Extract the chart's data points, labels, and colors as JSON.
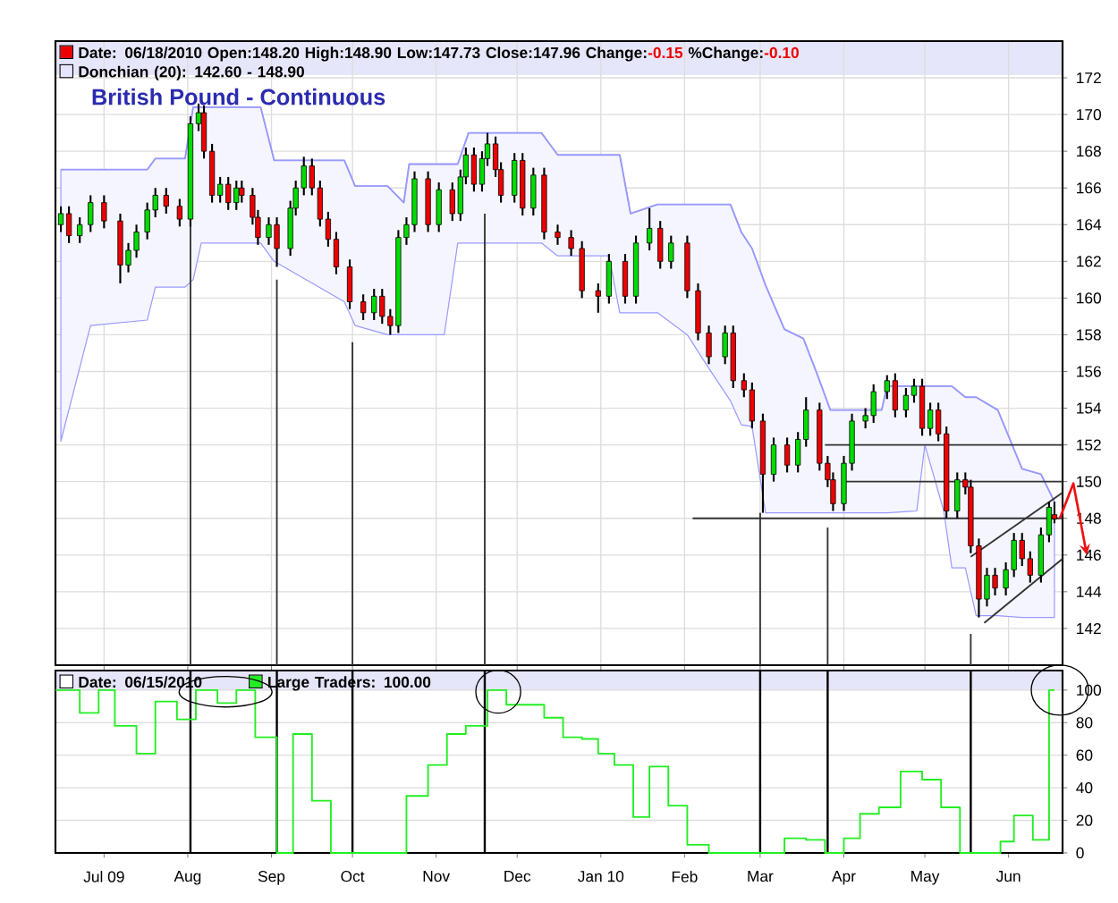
{
  "chart_data": [
    {
      "type": "candlestick",
      "title": "British Pound - Continuous",
      "annotations": [
        "Date: 06/18/2010  Open:148.20  High:148.90  Low:147.73  Close:147.96  Change:",
        "-0.15",
        "  %Change:",
        "-0.10"
      ],
      "x": [
        "2009-06-15",
        "2009-06-18",
        "2009-06-22",
        "2009-06-26",
        "2009-07-01",
        "2009-07-07",
        "2009-07-10",
        "2009-07-13",
        "2009-07-17",
        "2009-07-20",
        "2009-07-24",
        "2009-07-29",
        "2009-08-02",
        "2009-08-05",
        "2009-08-07",
        "2009-08-10",
        "2009-08-13",
        "2009-08-16",
        "2009-08-19",
        "2009-08-21",
        "2009-08-25",
        "2009-08-27",
        "2009-08-31",
        "2009-09-03",
        "2009-09-08",
        "2009-09-10",
        "2009-09-13",
        "2009-09-16",
        "2009-09-19",
        "2009-09-22",
        "2009-09-25",
        "2009-09-30",
        "2009-10-05",
        "2009-10-09",
        "2009-10-12",
        "2009-10-15",
        "2009-10-18",
        "2009-10-21",
        "2009-10-24",
        "2009-10-29",
        "2009-11-02",
        "2009-11-07",
        "2009-11-10",
        "2009-11-12",
        "2009-11-15",
        "2009-11-18",
        "2009-11-20",
        "2009-11-23",
        "2009-11-25",
        "2009-11-30",
        "2009-12-03",
        "2009-12-07",
        "2009-12-11",
        "2009-12-16",
        "2009-12-21",
        "2009-12-25",
        "2009-12-31",
        "2010-01-04",
        "2010-01-10",
        "2010-01-14",
        "2010-01-19",
        "2010-01-23",
        "2010-01-27",
        "2010-02-02",
        "2010-02-06",
        "2010-02-10",
        "2010-02-16",
        "2010-02-19",
        "2010-02-23",
        "2010-02-26",
        "2010-03-02",
        "2010-03-06",
        "2010-03-11",
        "2010-03-15",
        "2010-03-18",
        "2010-03-23",
        "2010-03-26",
        "2010-03-28",
        "2010-04-01",
        "2010-04-04",
        "2010-04-09",
        "2010-04-12",
        "2010-04-17",
        "2010-04-20",
        "2010-04-24",
        "2010-04-27",
        "2010-04-30",
        "2010-05-03",
        "2010-05-06",
        "2010-05-09",
        "2010-05-13",
        "2010-05-16",
        "2010-05-18",
        "2010-05-21",
        "2010-05-24",
        "2010-05-27",
        "2010-05-31",
        "2010-06-03",
        "2010-06-06",
        "2010-06-09",
        "2010-06-13",
        "2010-06-16",
        "2010-06-18"
      ],
      "ohlc": [
        [
          164.0,
          165.0,
          163.6,
          164.6
        ],
        [
          164.6,
          165.0,
          163.0,
          163.4
        ],
        [
          163.4,
          164.4,
          163.0,
          164.0
        ],
        [
          164.0,
          165.6,
          163.6,
          165.2
        ],
        [
          165.2,
          165.6,
          163.8,
          164.2
        ],
        [
          164.2,
          164.6,
          160.8,
          161.8
        ],
        [
          161.8,
          163.0,
          161.4,
          162.6
        ],
        [
          162.6,
          164.0,
          162.2,
          163.6
        ],
        [
          163.6,
          165.2,
          163.2,
          164.8
        ],
        [
          164.8,
          166.0,
          164.4,
          165.6
        ],
        [
          165.6,
          166.0,
          164.6,
          165.0
        ],
        [
          165.0,
          165.4,
          163.9,
          164.3
        ],
        [
          164.3,
          169.9,
          163.9,
          169.5
        ],
        [
          169.5,
          170.6,
          169.1,
          170.1
        ],
        [
          170.1,
          170.5,
          167.6,
          168.0
        ],
        [
          168.0,
          168.4,
          165.2,
          165.6
        ],
        [
          165.6,
          166.6,
          165.2,
          166.2
        ],
        [
          166.2,
          166.6,
          164.8,
          165.2
        ],
        [
          165.2,
          166.4,
          164.8,
          166.0
        ],
        [
          166.0,
          166.4,
          165.2,
          165.6
        ],
        [
          165.6,
          166.0,
          164.0,
          164.4
        ],
        [
          164.4,
          164.8,
          162.9,
          163.3
        ],
        [
          163.3,
          164.4,
          162.9,
          164.0
        ],
        [
          164.0,
          164.4,
          161.7,
          162.7
        ],
        [
          162.7,
          165.3,
          162.3,
          164.9
        ],
        [
          164.9,
          166.4,
          164.5,
          166.0
        ],
        [
          166.0,
          167.7,
          165.6,
          167.2
        ],
        [
          167.2,
          167.6,
          165.6,
          166.0
        ],
        [
          166.0,
          166.4,
          163.9,
          164.3
        ],
        [
          164.3,
          164.7,
          162.8,
          163.2
        ],
        [
          163.2,
          163.6,
          161.3,
          161.7
        ],
        [
          161.7,
          162.1,
          159.4,
          159.8
        ],
        [
          159.8,
          160.2,
          158.8,
          159.2
        ],
        [
          159.2,
          160.5,
          158.8,
          160.1
        ],
        [
          160.1,
          160.5,
          158.6,
          159.0
        ],
        [
          159.0,
          159.4,
          158.0,
          158.5
        ],
        [
          158.5,
          163.7,
          158.1,
          163.3
        ],
        [
          163.3,
          164.4,
          162.9,
          164.0
        ],
        [
          164.0,
          166.9,
          163.6,
          166.5
        ],
        [
          166.5,
          166.9,
          163.6,
          164.0
        ],
        [
          164.0,
          166.3,
          163.6,
          165.9
        ],
        [
          165.9,
          166.3,
          164.2,
          164.6
        ],
        [
          164.6,
          167.0,
          164.2,
          166.6
        ],
        [
          166.6,
          168.2,
          166.2,
          167.8
        ],
        [
          167.8,
          168.2,
          165.8,
          166.2
        ],
        [
          166.2,
          168.0,
          165.8,
          167.6
        ],
        [
          167.6,
          169.0,
          167.2,
          168.4
        ],
        [
          168.4,
          168.8,
          166.6,
          167.0
        ],
        [
          167.0,
          167.4,
          165.2,
          165.6
        ],
        [
          165.6,
          167.9,
          165.2,
          167.5
        ],
        [
          167.5,
          167.9,
          164.5,
          164.9
        ],
        [
          164.9,
          167.1,
          164.5,
          166.7
        ],
        [
          166.7,
          167.1,
          163.2,
          163.6
        ],
        [
          163.6,
          164.0,
          162.9,
          163.3
        ],
        [
          163.3,
          163.7,
          162.3,
          162.7
        ],
        [
          162.7,
          163.1,
          160.0,
          160.4
        ],
        [
          160.4,
          160.8,
          159.2,
          160.1
        ],
        [
          160.1,
          162.4,
          159.7,
          162.0
        ],
        [
          162.0,
          162.4,
          159.7,
          160.1
        ],
        [
          160.1,
          163.4,
          159.7,
          163.0
        ],
        [
          163.0,
          164.9,
          162.6,
          163.8
        ],
        [
          163.8,
          164.2,
          161.6,
          162.0
        ],
        [
          162.0,
          163.4,
          161.6,
          163.0
        ],
        [
          163.0,
          163.4,
          160.0,
          160.4
        ],
        [
          160.4,
          160.8,
          157.7,
          158.1
        ],
        [
          158.1,
          158.5,
          156.4,
          156.8
        ],
        [
          156.8,
          158.5,
          156.4,
          158.1
        ],
        [
          158.1,
          158.5,
          155.1,
          155.5
        ],
        [
          155.5,
          155.9,
          154.6,
          155.0
        ],
        [
          155.0,
          155.4,
          152.9,
          153.3
        ],
        [
          153.3,
          153.7,
          148.3,
          150.4
        ],
        [
          150.4,
          152.4,
          150.0,
          152.0
        ],
        [
          152.0,
          152.4,
          150.5,
          150.9
        ],
        [
          150.9,
          152.7,
          150.5,
          152.3
        ],
        [
          152.3,
          154.6,
          151.9,
          153.9
        ],
        [
          153.9,
          154.3,
          150.6,
          151.0
        ],
        [
          151.0,
          151.4,
          149.7,
          150.1
        ],
        [
          150.1,
          150.5,
          148.4,
          148.8
        ],
        [
          148.8,
          151.4,
          148.4,
          151.0
        ],
        [
          151.0,
          153.7,
          150.6,
          153.3
        ],
        [
          153.3,
          154.0,
          152.9,
          153.6
        ],
        [
          153.6,
          155.3,
          153.2,
          154.9
        ],
        [
          154.9,
          155.8,
          154.5,
          155.5
        ],
        [
          155.5,
          155.9,
          153.5,
          153.9
        ],
        [
          153.9,
          155.1,
          153.5,
          154.7
        ],
        [
          154.7,
          155.6,
          154.3,
          155.2
        ],
        [
          155.2,
          155.6,
          152.5,
          152.9
        ],
        [
          152.9,
          154.3,
          152.5,
          153.9
        ],
        [
          153.9,
          154.3,
          152.2,
          152.6
        ],
        [
          152.6,
          153.0,
          148.0,
          148.4
        ],
        [
          148.4,
          150.5,
          148.0,
          150.1
        ],
        [
          150.1,
          150.5,
          149.3,
          149.7
        ],
        [
          149.7,
          150.1,
          146.1,
          146.5
        ],
        [
          146.5,
          146.9,
          142.6,
          143.6
        ],
        [
          143.6,
          145.3,
          143.2,
          144.9
        ],
        [
          144.9,
          145.3,
          143.8,
          144.2
        ],
        [
          144.2,
          145.6,
          143.8,
          145.2
        ],
        [
          145.2,
          147.2,
          144.8,
          146.8
        ],
        [
          146.8,
          147.2,
          145.4,
          145.8
        ],
        [
          145.8,
          146.2,
          144.5,
          144.9
        ],
        [
          144.9,
          147.5,
          144.5,
          147.1
        ],
        [
          147.1,
          148.9,
          146.7,
          148.6
        ],
        [
          148.2,
          148.9,
          147.73,
          147.96
        ]
      ],
      "series": [
        {
          "name": "Donchian (20): 142.60 - 148.90",
          "type": "line",
          "color": "#9999ff",
          "x": [
            "2009-06-15",
            "2009-06-26",
            "2009-07-17",
            "2009-07-20",
            "2009-07-31",
            "2009-08-03",
            "2009-08-06",
            "2009-08-28",
            "2009-09-02",
            "2009-09-28",
            "2009-10-02",
            "2009-10-14",
            "2009-10-20",
            "2009-10-22",
            "2009-11-04",
            "2009-11-09",
            "2009-11-13",
            "2009-12-10",
            "2009-12-16",
            "2010-01-04",
            "2010-01-08",
            "2010-01-12",
            "2010-01-22",
            "2010-02-02",
            "2010-02-09",
            "2010-02-18",
            "2010-02-22",
            "2010-02-26",
            "2010-03-03",
            "2010-03-10",
            "2010-03-17",
            "2010-03-22",
            "2010-03-27",
            "2010-04-15",
            "2010-04-17",
            "2010-04-28",
            "2010-05-01",
            "2010-05-08",
            "2010-05-11",
            "2010-05-16",
            "2010-05-20",
            "2010-05-28",
            "2010-06-06",
            "2010-06-13",
            "2010-06-18"
          ],
          "values": [
            167.0,
            167.0,
            167.0,
            167.6,
            167.6,
            170.4,
            170.4,
            170.4,
            167.5,
            167.5,
            166.1,
            166.1,
            165.2,
            167.3,
            167.3,
            167.3,
            169.0,
            169.0,
            167.8,
            167.8,
            167.8,
            164.6,
            165.1,
            165.1,
            165.1,
            165.1,
            163.6,
            162.7,
            160.7,
            158.3,
            157.8,
            155.9,
            153.9,
            153.9,
            155.2,
            155.2,
            155.2,
            155.2,
            155.2,
            154.6,
            154.6,
            153.9,
            150.7,
            150.4,
            148.9
          ],
          "upper": [
            167.0,
            167.0,
            167.0,
            167.6,
            167.6,
            170.4,
            170.4,
            170.4,
            167.5,
            167.5,
            166.1,
            166.1,
            165.2,
            167.3,
            167.3,
            167.3,
            169.0,
            169.0,
            167.8,
            167.8,
            167.8,
            164.6,
            165.1,
            165.1,
            165.1,
            165.1,
            163.6,
            162.7,
            160.7,
            158.3,
            157.8,
            155.9,
            153.9,
            153.9,
            155.2,
            155.2,
            155.2,
            155.2,
            155.2,
            154.6,
            154.6,
            153.9,
            150.7,
            150.4,
            148.9
          ],
          "lower": [
            152.2,
            158.5,
            158.8,
            160.6,
            160.6,
            161.0,
            163.0,
            163.0,
            162.0,
            159.8,
            158.5,
            158.0,
            158.0,
            158.0,
            158.0,
            163.0,
            163.0,
            163.0,
            162.3,
            162.3,
            159.2,
            159.2,
            159.2,
            158.0,
            156.4,
            154.4,
            153.1,
            153.0,
            148.3,
            148.3,
            148.3,
            148.3,
            148.3,
            148.3,
            148.3,
            148.4,
            152.0,
            148.4,
            145.3,
            145.3,
            142.7,
            142.7,
            142.6,
            142.6,
            142.6
          ]
        },
        {
          "type": "line",
          "color": "#333333",
          "x": [
            "2010-02-04",
            "2010-06-21"
          ],
          "values": [
            148,
            148
          ]
        },
        {
          "type": "line",
          "color": "#333333",
          "x": [
            "2010-03-25",
            "2010-06-21"
          ],
          "values": [
            152,
            152
          ]
        },
        {
          "type": "line",
          "color": "#333333",
          "x": [
            "2010-04-01",
            "2010-06-21"
          ],
          "values": [
            150,
            150
          ]
        },
        {
          "type": "line",
          "color": "#333333",
          "x": [
            "2010-05-18",
            "2010-06-21"
          ],
          "values": [
            145.9,
            149.4
          ]
        },
        {
          "type": "line",
          "color": "#333333",
          "x": [
            "2010-05-23",
            "2010-06-21"
          ],
          "values": [
            142.3,
            145.8
          ]
        },
        {
          "type": "line",
          "color": "#333333",
          "x": [
            "2009-08-02",
            "2009-08-02"
          ],
          "values": [
            165.9,
            140
          ]
        },
        {
          "type": "line",
          "color": "#333333",
          "x": [
            "2009-09-03",
            "2009-09-03"
          ],
          "values": [
            161.0,
            140
          ]
        },
        {
          "type": "line",
          "color": "#333333",
          "x": [
            "2009-10-01",
            "2009-10-01"
          ],
          "values": [
            157.6,
            140
          ]
        },
        {
          "type": "line",
          "color": "#333333",
          "x": [
            "2009-11-19",
            "2009-11-19"
          ],
          "values": [
            164.6,
            140
          ]
        },
        {
          "type": "line",
          "color": "#333333",
          "x": [
            "2010-03-01",
            "2010-03-01"
          ],
          "values": [
            148.3,
            140
          ]
        },
        {
          "type": "line",
          "color": "#333333",
          "x": [
            "2010-03-26",
            "2010-03-26"
          ],
          "values": [
            147.5,
            140
          ]
        },
        {
          "type": "line",
          "color": "#333333",
          "x": [
            "2010-05-18",
            "2010-05-18"
          ],
          "values": [
            141.7,
            140
          ]
        }
      ],
      "xlim": [
        "2009-06-13",
        "2010-06-21"
      ],
      "xticks": [
        {
          "value": "2009-07-01",
          "label": null
        },
        {
          "value": "2009-08-01",
          "label": null
        },
        {
          "value": "2009-09-01",
          "label": null
        },
        {
          "value": "2009-10-01",
          "label": null
        },
        {
          "value": "2009-11-01",
          "label": null
        },
        {
          "value": "2009-12-01",
          "label": null
        },
        {
          "value": "2010-01-01",
          "label": null
        },
        {
          "value": "2010-02-01",
          "label": null
        },
        {
          "value": "2010-03-01",
          "label": null
        },
        {
          "value": "2010-04-01",
          "label": null
        },
        {
          "value": "2010-05-01",
          "label": null
        },
        {
          "value": "2010-06-01",
          "label": null
        }
      ],
      "ylim": [
        140,
        174
      ],
      "yticks": [
        142,
        144,
        146,
        148,
        150,
        152,
        154,
        156,
        158,
        160,
        162,
        164,
        166,
        168,
        170,
        172
      ],
      "grid": true,
      "legend": "top left",
      "tick_labels": "y"
    },
    {
      "type": "step",
      "annotations": [
        "Date: 06/15/2010"
      ],
      "x": [
        "2009-06-13",
        "2009-06-22",
        "2009-06-29",
        "2009-07-05",
        "2009-07-13",
        "2009-07-20",
        "2009-07-28",
        "2009-08-04",
        "2009-08-12",
        "2009-08-19",
        "2009-08-26",
        "2009-09-03",
        "2009-09-09",
        "2009-09-16",
        "2009-09-23",
        "2009-10-21",
        "2009-10-29",
        "2009-11-05",
        "2009-11-12",
        "2009-11-20",
        "2009-11-27",
        "2009-12-11",
        "2009-12-18",
        "2009-12-25",
        "2009-12-31",
        "2010-01-06",
        "2010-01-13",
        "2010-01-19",
        "2010-01-26",
        "2010-02-02",
        "2010-02-10",
        "2010-03-10",
        "2010-03-18",
        "2010-03-25",
        "2010-04-01",
        "2010-04-07",
        "2010-04-14",
        "2010-04-22",
        "2010-04-30",
        "2010-05-07",
        "2010-05-14",
        "2010-05-29",
        "2010-06-03",
        "2010-06-10",
        "2010-06-16",
        "2010-06-18"
      ],
      "series": [
        {
          "name": "Large Traders: 100.00",
          "color": "#22ee22",
          "values": [
            100,
            86,
            100,
            78,
            61,
            93,
            82,
            100,
            92,
            100,
            71,
            0,
            73,
            32,
            0,
            35,
            54,
            73,
            78,
            100,
            91,
            83,
            71,
            70,
            61,
            54,
            22,
            53,
            29,
            5,
            0,
            9,
            8,
            0,
            9,
            24,
            28,
            50,
            45,
            28,
            0,
            7,
            23,
            8,
            100,
            100
          ]
        }
      ],
      "ref_lines": [
        {
          "axis": "x",
          "value": "2009-08-02",
          "color": "#000000"
        },
        {
          "axis": "x",
          "value": "2009-09-03",
          "color": "#000000"
        },
        {
          "axis": "x",
          "value": "2009-10-01",
          "color": "#000000"
        },
        {
          "axis": "x",
          "value": "2009-11-19",
          "color": "#000000"
        },
        {
          "axis": "x",
          "value": "2010-03-01",
          "color": "#000000"
        },
        {
          "axis": "x",
          "value": "2010-03-26",
          "color": "#000000"
        },
        {
          "axis": "x",
          "value": "2010-05-18",
          "color": "#000000"
        }
      ],
      "grid": "y",
      "xlim": [
        "2009-06-13",
        "2010-06-21"
      ],
      "xticks": [
        {
          "value": "2009-07-01",
          "label": "Jul 09"
        },
        {
          "value": "2009-08-01",
          "label": "Aug"
        },
        {
          "value": "2009-09-01",
          "label": "Sep"
        },
        {
          "value": "2009-10-01",
          "label": "Oct"
        },
        {
          "value": "2009-11-01",
          "label": "Nov"
        },
        {
          "value": "2009-12-01",
          "label": "Dec"
        },
        {
          "value": "2010-01-01",
          "label": "Jan 10"
        },
        {
          "value": "2010-02-01",
          "label": "Feb"
        },
        {
          "value": "2010-03-01",
          "label": "Mar"
        },
        {
          "value": "2010-04-01",
          "label": "Apr"
        },
        {
          "value": "2010-05-01",
          "label": "May"
        },
        {
          "value": "2010-06-01",
          "label": "Jun"
        }
      ],
      "ylim": [
        0,
        112
      ],
      "yticks": [
        0,
        20,
        40,
        60,
        80,
        100
      ],
      "legend": "top left"
    }
  ]
}
